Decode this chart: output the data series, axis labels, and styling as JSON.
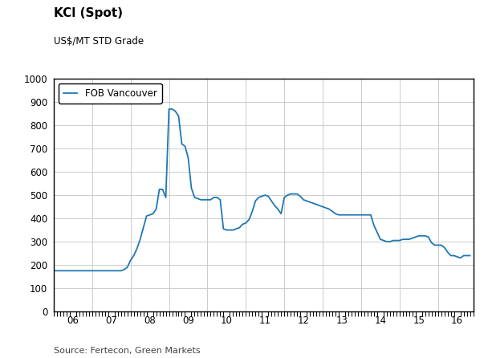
{
  "title": "KCl (Spot)",
  "subtitle": "US$/MT STD Grade",
  "source": "Source: Fertecon, Green Markets",
  "legend_label": "FOB Vancouver",
  "line_color": "#1f77b4",
  "background_color": "#ffffff",
  "plot_bg_color": "#ffffff",
  "ylim": [
    0,
    1000
  ],
  "yticks": [
    0,
    100,
    200,
    300,
    400,
    500,
    600,
    700,
    800,
    900,
    1000
  ],
  "xlabel_ticks": [
    "06",
    "07",
    "08",
    "09",
    "10",
    "11",
    "12",
    "13",
    "14",
    "15",
    "16"
  ],
  "x_tick_positions": [
    2006,
    2007,
    2008,
    2009,
    2010,
    2011,
    2012,
    2013,
    2014,
    2015,
    2016
  ],
  "xlim": [
    2006,
    2016.92
  ],
  "x_values": [
    2006.0,
    2006.083,
    2006.167,
    2006.25,
    2006.333,
    2006.417,
    2006.5,
    2006.583,
    2006.667,
    2006.75,
    2006.833,
    2006.917,
    2007.0,
    2007.083,
    2007.167,
    2007.25,
    2007.333,
    2007.417,
    2007.5,
    2007.583,
    2007.667,
    2007.75,
    2007.833,
    2007.917,
    2008.0,
    2008.083,
    2008.167,
    2008.25,
    2008.333,
    2008.417,
    2008.5,
    2008.583,
    2008.667,
    2008.75,
    2008.833,
    2008.917,
    2009.0,
    2009.083,
    2009.167,
    2009.25,
    2009.333,
    2009.417,
    2009.5,
    2009.583,
    2009.667,
    2009.75,
    2009.833,
    2009.917,
    2010.0,
    2010.083,
    2010.167,
    2010.25,
    2010.333,
    2010.417,
    2010.5,
    2010.583,
    2010.667,
    2010.75,
    2010.833,
    2010.917,
    2011.0,
    2011.083,
    2011.167,
    2011.25,
    2011.333,
    2011.417,
    2011.5,
    2011.583,
    2011.667,
    2011.75,
    2011.833,
    2011.917,
    2012.0,
    2012.083,
    2012.167,
    2012.25,
    2012.333,
    2012.417,
    2012.5,
    2012.583,
    2012.667,
    2012.75,
    2012.833,
    2012.917,
    2013.0,
    2013.083,
    2013.167,
    2013.25,
    2013.333,
    2013.417,
    2013.5,
    2013.583,
    2013.667,
    2013.75,
    2013.833,
    2013.917,
    2014.0,
    2014.083,
    2014.167,
    2014.25,
    2014.333,
    2014.417,
    2014.5,
    2014.583,
    2014.667,
    2014.75,
    2014.833,
    2014.917,
    2015.0,
    2015.083,
    2015.167,
    2015.25,
    2015.333,
    2015.417,
    2015.5,
    2015.583,
    2015.667,
    2015.75,
    2015.833,
    2015.917,
    2016.0,
    2016.083,
    2016.167,
    2016.25,
    2016.333,
    2016.417,
    2016.5,
    2016.583,
    2016.667,
    2016.75,
    2016.833
  ],
  "y_values": [
    175,
    175,
    175,
    175,
    175,
    175,
    175,
    175,
    175,
    175,
    175,
    175,
    175,
    175,
    175,
    175,
    175,
    175,
    175,
    175,
    175,
    175,
    180,
    190,
    220,
    240,
    270,
    310,
    360,
    410,
    415,
    420,
    440,
    525,
    525,
    490,
    870,
    870,
    860,
    840,
    720,
    710,
    660,
    530,
    490,
    485,
    480,
    480,
    480,
    480,
    490,
    490,
    480,
    355,
    350,
    350,
    350,
    355,
    360,
    375,
    380,
    395,
    430,
    475,
    490,
    495,
    500,
    495,
    475,
    455,
    440,
    420,
    490,
    500,
    505,
    505,
    505,
    495,
    480,
    475,
    470,
    465,
    460,
    455,
    450,
    445,
    440,
    430,
    420,
    415,
    415,
    415,
    415,
    415,
    415,
    415,
    415,
    415,
    415,
    415,
    370,
    340,
    310,
    305,
    300,
    300,
    305,
    305,
    305,
    310,
    310,
    310,
    315,
    320,
    325,
    325,
    325,
    320,
    295,
    285,
    285,
    285,
    275,
    255,
    240,
    240,
    235,
    230,
    240,
    240,
    240
  ]
}
